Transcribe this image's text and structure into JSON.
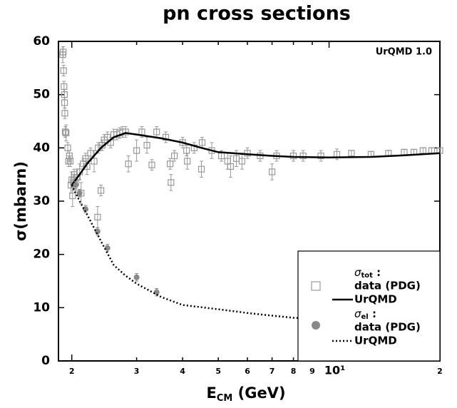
{
  "chart_data": {
    "type": "scatter",
    "title": "pn cross sections",
    "annotation": "UrQMD 1.0",
    "x_label": {
      "main": "E",
      "subscript": "CM",
      "rest": " (GeV)"
    },
    "y_label": "σ(mbarn)",
    "xscale": "log",
    "xlim": [
      1.84,
      20
    ],
    "ylim": [
      0,
      60
    ],
    "xticks": [
      2,
      3,
      4,
      5,
      6,
      7,
      8,
      9,
      {
        "value": 10,
        "label": "10¹"
      },
      {
        "value": 20,
        "label": "2"
      }
    ],
    "yticks": [
      0,
      10,
      20,
      30,
      40,
      50,
      60
    ],
    "grid": false,
    "legend": "lower right",
    "legend_groups": [
      {
        "symbol": "σ",
        "subscript": "tot",
        "suffix": " :",
        "series": [
          0,
          1
        ]
      },
      {
        "symbol": "σ",
        "subscript": "el",
        "suffix": " :",
        "series": [
          2,
          3
        ]
      }
    ],
    "series": [
      {
        "name": "data (PDG)",
        "kind": "square",
        "color": "#999999",
        "x": [
          1.89,
          1.895,
          1.9,
          1.905,
          1.91,
          1.912,
          1.915,
          1.92,
          1.93,
          1.95,
          1.96,
          1.97,
          1.98,
          1.99,
          2.0,
          2.01,
          2.02,
          2.03,
          2.05,
          2.07,
          2.1,
          2.12,
          2.15,
          2.18,
          2.2,
          2.25,
          2.3,
          2.35,
          2.4,
          2.36,
          2.42,
          2.45,
          2.5,
          2.55,
          2.6,
          2.65,
          2.7,
          2.75,
          2.8,
          2.85,
          3.0,
          3.1,
          3.2,
          3.3,
          3.4,
          3.6,
          3.7,
          3.72,
          3.8,
          4.0,
          4.1,
          4.12,
          4.3,
          4.5,
          4.52,
          4.8,
          5.1,
          5.3,
          5.4,
          5.6,
          5.8,
          6.0,
          6.5,
          7.0,
          7.2,
          8.0,
          8.5,
          9.5,
          10.5,
          11.5,
          13,
          14.5,
          16,
          17,
          18,
          19,
          20
        ],
        "values": [
          57.5,
          58,
          54.5,
          51.5,
          50,
          48.5,
          46.5,
          43,
          42.8,
          40,
          37.5,
          38.5,
          37.5,
          33,
          34,
          31,
          33.5,
          35,
          33.5,
          34.5,
          35.5,
          31.5,
          37,
          38,
          36.5,
          39,
          37.5,
          27,
          32,
          40,
          40.5,
          41.5,
          42,
          41,
          42.5,
          42.5,
          42.8,
          43,
          43,
          37,
          39.5,
          43,
          40.5,
          36.8,
          43,
          42,
          37,
          33.5,
          38.5,
          41,
          39.5,
          37.5,
          40,
          36,
          41,
          39.5,
          38.5,
          37.5,
          36.5,
          38,
          37.5,
          39,
          38.5,
          35.5,
          38.5,
          38.5,
          38.5,
          38.5,
          38.8,
          39,
          38.8,
          39,
          39.2,
          39.2,
          39.5,
          39.5,
          39.5
        ],
        "errors": [
          1.5,
          1,
          1,
          1,
          1,
          1,
          1,
          1,
          1.5,
          1,
          1,
          1,
          1,
          1.5,
          1.5,
          2,
          1.5,
          1,
          1.5,
          1.5,
          1.5,
          2,
          1,
          1,
          1.5,
          1,
          2,
          2,
          1,
          1,
          1,
          1,
          1,
          1,
          1,
          1,
          1,
          1,
          1,
          1.5,
          2,
          1,
          1.5,
          1,
          1,
          1,
          1,
          1.5,
          1,
          1,
          1,
          1.5,
          1,
          1.5,
          1,
          1.5,
          1,
          1.5,
          2,
          1.5,
          1.5,
          1,
          1,
          1.5,
          1,
          1,
          1,
          1,
          1,
          0.5,
          0.5,
          0.5,
          0.5,
          0.5,
          0.5,
          0.5,
          0.5
        ]
      },
      {
        "name": "UrQMD",
        "kind": "line",
        "dash": "solid",
        "color": "#000000",
        "x": [
          2.0,
          2.1,
          2.2,
          2.4,
          2.6,
          2.8,
          3.0,
          3.5,
          4,
          4.5,
          5,
          6,
          7,
          8,
          10,
          13,
          16,
          20
        ],
        "values": [
          33,
          35,
          37,
          40,
          42,
          42.8,
          42.5,
          41.8,
          41,
          40,
          39.2,
          38.8,
          38.5,
          38.3,
          38.2,
          38.3,
          38.6,
          39
        ]
      },
      {
        "name": "data (PDG)",
        "kind": "circle",
        "color": "#888888",
        "x": [
          2.05,
          2.1,
          2.18,
          2.35,
          2.5,
          3.0,
          3.4
        ],
        "values": [
          33,
          31.5,
          28.5,
          24.3,
          21.2,
          15.7,
          12.9
        ],
        "errors": [
          0.7,
          0.7,
          0.7,
          0.7,
          0.7,
          0.7,
          0.7
        ]
      },
      {
        "name": "UrQMD",
        "kind": "line",
        "dash": "dotted",
        "color": "#000000",
        "x": [
          2.0,
          2.1,
          2.2,
          2.4,
          2.6,
          2.8,
          3.0,
          3.5,
          4.0,
          5,
          6,
          7,
          8,
          9
        ],
        "values": [
          33,
          30,
          27.5,
          22.5,
          18,
          16,
          14.5,
          12,
          10.5,
          9.7,
          9,
          8.5,
          8.1,
          7.9
        ]
      }
    ]
  }
}
